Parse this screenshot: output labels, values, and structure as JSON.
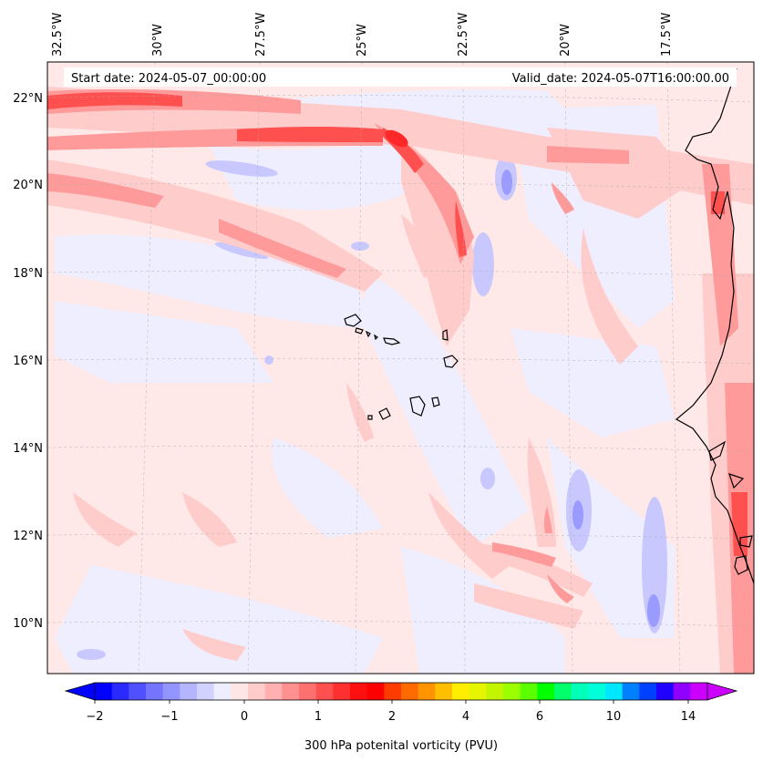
{
  "map": {
    "start_date": "Start date: 2024-05-07_00:00:00",
    "valid_date": "Valid_date: 2024-05-07T16:00:00.00",
    "lon_labels": [
      "32.5°W",
      "30°W",
      "27.5°W",
      "25°W",
      "22.5°W",
      "20°W",
      "17.5°W"
    ],
    "lat_labels": [
      "22°N",
      "20°N",
      "18°N",
      "16°N",
      "14°N",
      "12°N",
      "10°N"
    ]
  },
  "colorbar": {
    "title": "300 hPa potenital vorticity (PVU)",
    "ticks": [
      "−2",
      "−1",
      "0",
      "1",
      "2",
      "4",
      "6",
      "10",
      "14"
    ],
    "colors": [
      "#0000ff",
      "#2a2aff",
      "#5050ff",
      "#7474ff",
      "#9494ff",
      "#b4b4ff",
      "#d2d2ff",
      "#eeeeff",
      "#ffe6e6",
      "#ffcccc",
      "#ffb0b0",
      "#ff9090",
      "#ff7070",
      "#ff5050",
      "#ff3030",
      "#ff1010",
      "#ff0000",
      "#ff3c00",
      "#ff6a00",
      "#ff9400",
      "#ffbe00",
      "#ffee00",
      "#e6f500",
      "#c4f500",
      "#9cff00",
      "#5cff00",
      "#00ff00",
      "#00ff6a",
      "#00ffb8",
      "#00ffd8",
      "#00e6ff",
      "#0080ff",
      "#0040ff",
      "#2000ff",
      "#9000ff",
      "#cc00ff"
    ]
  }
}
